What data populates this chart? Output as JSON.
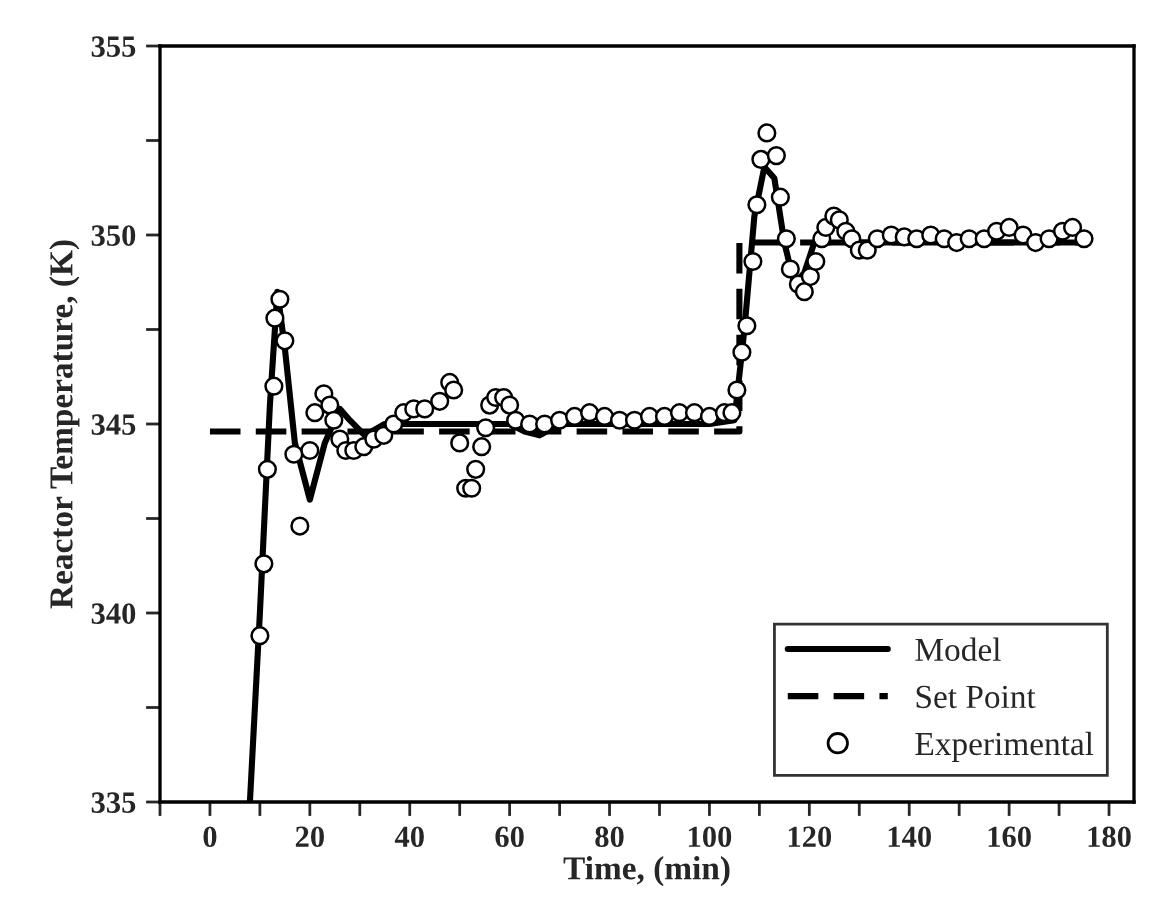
{
  "chart_data": {
    "type": "line",
    "xlabel": "Time, (min)",
    "ylabel": "Reactor Temperature, (K)",
    "xlim": [
      -10,
      185
    ],
    "ylim": [
      335,
      355
    ],
    "xticks": [
      {
        "value": -10,
        "label": null
      },
      0,
      {
        "value": 10,
        "label": null
      },
      20,
      {
        "value": 30,
        "label": null
      },
      40,
      {
        "value": 50,
        "label": null
      },
      60,
      {
        "value": 70,
        "label": null
      },
      80,
      {
        "value": 90,
        "label": null
      },
      100,
      {
        "value": 110,
        "label": null
      },
      120,
      {
        "value": 130,
        "label": null
      },
      140,
      {
        "value": 150,
        "label": null
      },
      160,
      {
        "value": 170,
        "label": null
      },
      180
    ],
    "yticks": [
      335,
      {
        "value": 337.5,
        "label": null
      },
      340,
      {
        "value": 342.5,
        "label": null
      },
      345,
      {
        "value": 347.5,
        "label": null
      },
      350,
      {
        "value": 352.5,
        "label": null
      },
      355
    ],
    "grid": false,
    "legend": "bottom right",
    "series": [
      {
        "name": "Model",
        "color": "#000000",
        "line_style": "solid",
        "marker": "none",
        "x": [
          8,
          10,
          12,
          13.5,
          15,
          17,
          20,
          23,
          26,
          28,
          31,
          35,
          60,
          63,
          66,
          70,
          100,
          105,
          107,
          109,
          111,
          113,
          115,
          117,
          119,
          121,
          125,
          175
        ],
        "values": [
          335,
          340,
          345.5,
          348.5,
          347,
          344.5,
          343,
          344.5,
          345.4,
          345.1,
          344.7,
          345,
          345,
          344.8,
          344.7,
          345,
          345,
          345.1,
          347.5,
          350.5,
          351.8,
          351.5,
          349.8,
          348.7,
          349,
          349.8,
          349.8,
          349.8
        ]
      },
      {
        "name": "Set Point",
        "color": "#000000",
        "line_style": "dashed",
        "marker": "none",
        "x": [
          0,
          106,
          106,
          175
        ],
        "values": [
          344.8,
          344.8,
          349.8,
          349.8
        ]
      },
      {
        "name": "Experimental",
        "type": "scatter",
        "color": "#000000",
        "marker": "circle",
        "x": [
          10,
          10.8,
          11.5,
          12.8,
          13,
          14,
          15,
          16.8,
          18,
          20,
          21,
          22.8,
          24,
          24.8,
          26,
          27.2,
          28.8,
          30.8,
          32.8,
          34.8,
          36.8,
          38.8,
          40.8,
          43,
          46,
          48,
          48.8,
          50,
          51.2,
          52.4,
          53.2,
          54.4,
          55.2,
          56,
          57.2,
          58.8,
          60,
          61.2,
          64,
          67,
          70,
          73,
          76,
          79,
          82,
          85,
          88,
          91,
          94,
          97,
          100,
          103,
          104.5,
          105.5,
          106.5,
          107.5,
          108.7,
          109.5,
          110.3,
          111.5,
          113.4,
          114.2,
          115.4,
          116.2,
          117.8,
          119,
          120.2,
          121.3,
          122.5,
          123.3,
          124.9,
          126,
          127.3,
          128.5,
          130,
          131.6,
          133.6,
          136.4,
          139,
          141.5,
          144.3,
          147,
          149.5,
          152,
          155,
          157.5,
          160,
          162.8,
          165.3,
          168,
          170.7,
          172.7,
          175
        ],
        "values": [
          339.4,
          341.3,
          343.8,
          346,
          347.8,
          348.3,
          347.2,
          344.2,
          342.3,
          344.3,
          345.3,
          345.8,
          345.5,
          345.1,
          344.6,
          344.3,
          344.3,
          344.4,
          344.6,
          344.7,
          345,
          345.3,
          345.4,
          345.4,
          345.6,
          346.1,
          345.9,
          344.5,
          343.3,
          343.3,
          343.8,
          344.4,
          344.9,
          345.5,
          345.7,
          345.7,
          345.5,
          345.1,
          345,
          345,
          345.1,
          345.2,
          345.3,
          345.2,
          345.1,
          345.1,
          345.2,
          345.2,
          345.3,
          345.3,
          345.2,
          345.3,
          345.3,
          345.9,
          346.9,
          347.6,
          349.3,
          350.8,
          352,
          352.7,
          352.1,
          351,
          349.9,
          349.1,
          348.7,
          348.5,
          348.9,
          349.3,
          349.9,
          350.2,
          350.5,
          350.4,
          350.1,
          349.9,
          349.6,
          349.6,
          349.9,
          350,
          349.95,
          349.9,
          350,
          349.9,
          349.8,
          349.9,
          349.9,
          350.1,
          350.2,
          350,
          349.8,
          349.9,
          350.1,
          350.2,
          349.9
        ]
      }
    ]
  }
}
